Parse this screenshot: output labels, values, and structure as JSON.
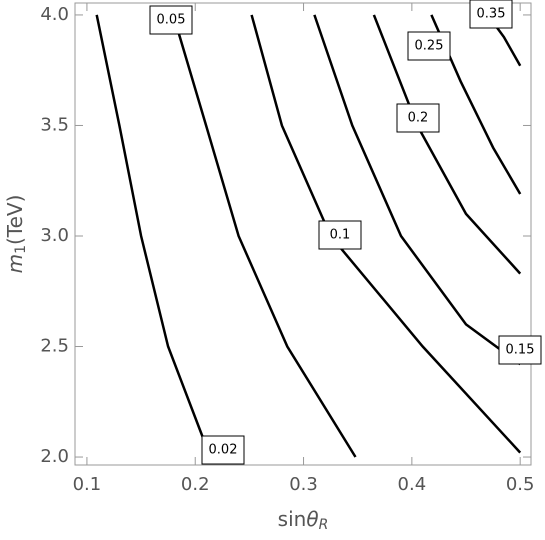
{
  "chart_data": {
    "type": "contour",
    "xlabel": "sin",
    "xlabel_symbol": "θ",
    "xlabel_sub": "R",
    "ylabel": "m",
    "ylabel_sub": "1",
    "ylabel_rest": "(TeV)",
    "xlim": [
      0.089,
      0.51
    ],
    "ylim": [
      1.964,
      4.054
    ],
    "xticks": [
      0.1,
      0.2,
      0.3,
      0.4,
      0.5
    ],
    "yticks": [
      {
        "value": 2.0,
        "label": "2.0"
      },
      2.5,
      {
        "value": 3.0,
        "label": "3.0"
      },
      3.5,
      {
        "value": 4.0,
        "label": "4.0"
      }
    ],
    "color": "#000000",
    "contours": [
      {
        "level": 0.02,
        "x": [
          0.109,
          0.13,
          0.15,
          0.175,
          0.21
        ],
        "y": [
          4.0,
          3.5,
          3.0,
          2.5,
          2.05
        ]
      },
      {
        "level": 0.05,
        "x": [
          0.184,
          0.21,
          0.24,
          0.285,
          0.348
        ],
        "y": [
          3.93,
          3.5,
          3.0,
          2.5,
          2.0
        ]
      },
      {
        "level": 0.1,
        "x": [
          0.252,
          0.28,
          0.325,
          0.41,
          0.5
        ],
        "y": [
          4.0,
          3.5,
          3.0,
          2.5,
          2.02
        ]
      },
      {
        "level": 0.15,
        "x": [
          0.31,
          0.345,
          0.39,
          0.45,
          0.5
        ],
        "y": [
          4.0,
          3.5,
          3.0,
          2.6,
          2.42
        ]
      },
      {
        "level": 0.2,
        "x": [
          0.365,
          0.405,
          0.45,
          0.5
        ],
        "y": [
          4.0,
          3.5,
          3.1,
          2.83
        ]
      },
      {
        "level": 0.25,
        "x": [
          0.418,
          0.445,
          0.475,
          0.5
        ],
        "y": [
          4.0,
          3.7,
          3.4,
          3.19
        ]
      },
      {
        "level": 0.35,
        "x": [
          0.47,
          0.485,
          0.5
        ],
        "y": [
          4.0,
          3.9,
          3.77
        ]
      }
    ]
  }
}
